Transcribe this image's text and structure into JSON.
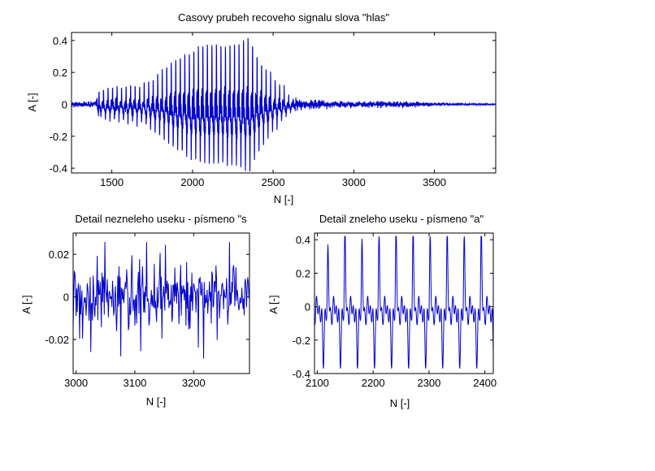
{
  "chart_data": [
    {
      "type": "line",
      "title": "Casovy prubeh recoveho signalu slova \"hlas\"",
      "xlabel": "N [-]",
      "ylabel": "A [-]",
      "xlim": [
        1250,
        3880
      ],
      "ylim": [
        -0.43,
        0.45
      ],
      "xticks": [
        1500,
        2000,
        2500,
        3000,
        3500
      ],
      "yticks": [
        -0.4,
        -0.2,
        0,
        0.2,
        0.4
      ],
      "ytick_labels": [
        "-0.4",
        "-0.2",
        "0",
        "0.2",
        "0.4"
      ],
      "grid": false,
      "series": [
        {
          "color": "#0000cc",
          "envelope": [
            [
              1250,
              0.012
            ],
            [
              1300,
              0.014
            ],
            [
              1400,
              0.015
            ],
            [
              1420,
              0.08
            ],
            [
              1500,
              0.1
            ],
            [
              1600,
              0.11
            ],
            [
              1700,
              0.12
            ],
            [
              1800,
              0.2
            ],
            [
              1900,
              0.28
            ],
            [
              2000,
              0.34
            ],
            [
              2100,
              0.36
            ],
            [
              2200,
              0.37
            ],
            [
              2300,
              0.38
            ],
            [
              2350,
              0.42
            ],
            [
              2400,
              0.3
            ],
            [
              2500,
              0.16
            ],
            [
              2600,
              0.06
            ],
            [
              2650,
              0.025
            ],
            [
              3000,
              0.014
            ],
            [
              3200,
              0.016
            ],
            [
              3400,
              0.012
            ],
            [
              3600,
              0.005
            ],
            [
              3880,
              0.002
            ]
          ],
          "voiced_range": [
            1420,
            2640
          ],
          "pitch_period": 28
        }
      ]
    },
    {
      "type": "line",
      "title": "Detail nezneleho useku - písmeno \"s",
      "xlabel": "N [-]",
      "ylabel": "A [-]",
      "xlim": [
        2995,
        3295
      ],
      "ylim": [
        -0.036,
        0.03
      ],
      "xticks": [
        3000,
        3100,
        3200
      ],
      "yticks": [
        -0.02,
        0,
        0.02
      ],
      "ytick_labels": [
        "-0.02",
        "0",
        "0.02"
      ],
      "grid": false,
      "series": [
        {
          "color": "#0000cc",
          "amplitude": 0.012,
          "peak": 0.03,
          "noise": true
        }
      ]
    },
    {
      "type": "line",
      "title": "Detail zneleho useku - písmeno \"a\"",
      "xlabel": "N [-]",
      "ylabel": "A [-]",
      "xlim": [
        2095,
        2415
      ],
      "ylim": [
        -0.4,
        0.44
      ],
      "xticks": [
        2100,
        2200,
        2300,
        2400
      ],
      "yticks": [
        -0.4,
        -0.2,
        0,
        0.2,
        0.4
      ],
      "ytick_labels": [
        "-0.4",
        "-0.2",
        "0",
        "0.2",
        "0.4"
      ],
      "grid": false,
      "series": [
        {
          "color": "#0000cc",
          "pitch_period": 30.5,
          "peak_max": 0.42,
          "trough_min": -0.37
        }
      ]
    }
  ]
}
